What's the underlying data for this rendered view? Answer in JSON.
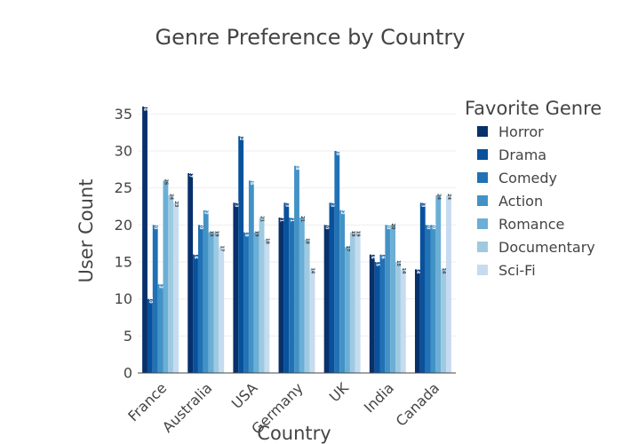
{
  "chart_data": {
    "type": "bar",
    "title": "Genre Preference by Country",
    "xlabel": "Country",
    "ylabel": "User Count",
    "ylim": [
      0,
      36
    ],
    "yticks": [
      0,
      5,
      10,
      15,
      20,
      25,
      30,
      35
    ],
    "grid": true,
    "legend_title": "Favorite Genre",
    "legend_position": "right",
    "categories": [
      "France",
      "Australia",
      "USA",
      "Germany",
      "UK",
      "India",
      "Canada"
    ],
    "series": [
      {
        "name": "Horror",
        "color": "#08306b",
        "values": [
          36,
          27,
          23,
          21,
          20,
          16,
          14
        ]
      },
      {
        "name": "Drama",
        "color": "#08519c",
        "values": [
          10,
          16,
          32,
          23,
          23,
          15,
          23
        ]
      },
      {
        "name": "Comedy",
        "color": "#2171b5",
        "values": [
          20,
          20,
          19,
          21,
          30,
          16,
          20
        ]
      },
      {
        "name": "Action",
        "color": "#4292c6",
        "values": [
          12,
          22,
          26,
          28,
          22,
          20,
          20
        ]
      },
      {
        "name": "Romance",
        "color": "#6baed6",
        "values": [
          26,
          19,
          19,
          21,
          17,
          20,
          24
        ]
      },
      {
        "name": "Documentary",
        "color": "#9ecae1",
        "values": [
          24,
          19,
          21,
          18,
          19,
          15,
          14
        ]
      },
      {
        "name": "Sci-Fi",
        "color": "#c6dbef",
        "values": [
          23,
          17,
          18,
          14,
          19,
          14,
          24
        ]
      }
    ]
  }
}
